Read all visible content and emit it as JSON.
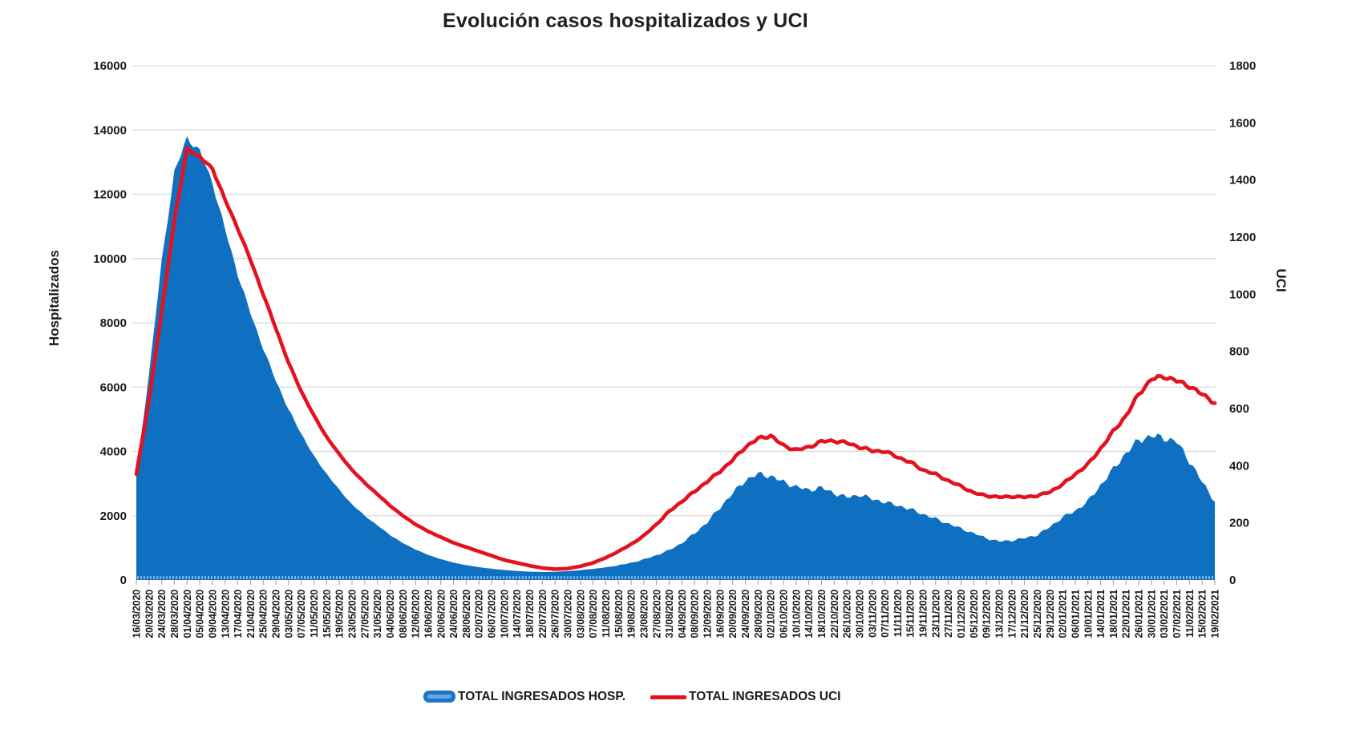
{
  "title": "Evolución casos hospitalizados y UCI",
  "legend": {
    "hosp_label": "TOTAL INGRESADOS HOSP.",
    "uci_label": "TOTAL INGRESADOS UCI"
  },
  "colors": {
    "hosp_fill": "#0f70c2",
    "hosp_baseline_texture": "#7fb2e5",
    "uci_line": "#e4121e",
    "gridline": "#d9d9d9",
    "tick": "#9b9b9b",
    "label_text": "#1a1a1a"
  },
  "chart_data": {
    "type": "area",
    "title": "Evolución casos hospitalizados y UCI",
    "left_axis": {
      "title": "Hospitalizados",
      "min": 0,
      "max": 16000,
      "step": 2000,
      "ticks": [
        "16000",
        "14000",
        "12000",
        "10000",
        "8000",
        "6000",
        "4000",
        "2000",
        "0"
      ]
    },
    "right_axis": {
      "title": "UCI",
      "min": 0,
      "max": 1800,
      "step": 200,
      "ticks": [
        "1800",
        "1600",
        "1400",
        "1200",
        "1000",
        "800",
        "600",
        "400",
        "200",
        "0"
      ]
    },
    "grid": true,
    "legend_position": "bottom",
    "categories": [
      "16/03/2020",
      "20/03/2020",
      "24/03/2020",
      "28/03/2020",
      "01/04/2020",
      "05/04/2020",
      "09/04/2020",
      "13/04/2020",
      "17/04/2020",
      "21/04/2020",
      "25/04/2020",
      "29/04/2020",
      "03/05/2020",
      "07/05/2020",
      "11/05/2020",
      "15/05/2020",
      "19/05/2020",
      "23/05/2020",
      "27/05/2020",
      "31/05/2020",
      "04/06/2020",
      "08/06/2020",
      "12/06/2020",
      "16/06/2020",
      "20/06/2020",
      "24/06/2020",
      "28/06/2020",
      "02/07/2020",
      "06/07/2020",
      "10/07/2020",
      "14/07/2020",
      "18/07/2020",
      "22/07/2020",
      "26/07/2020",
      "30/07/2020",
      "03/08/2020",
      "07/08/2020",
      "11/08/2020",
      "15/08/2020",
      "19/08/2020",
      "23/08/2020",
      "27/08/2020",
      "31/08/2020",
      "04/09/2020",
      "08/09/2020",
      "12/09/2020",
      "16/09/2020",
      "20/09/2020",
      "24/09/2020",
      "28/09/2020",
      "02/10/2020",
      "06/10/2020",
      "10/10/2020",
      "14/10/2020",
      "18/10/2020",
      "22/10/2020",
      "26/10/2020",
      "30/10/2020",
      "03/11/2020",
      "07/11/2020",
      "11/11/2020",
      "15/11/2020",
      "19/11/2020",
      "23/11/2020",
      "27/11/2020",
      "01/12/2020",
      "05/12/2020",
      "09/12/2020",
      "13/12/2020",
      "17/12/2020",
      "21/12/2020",
      "25/12/2020",
      "29/12/2020",
      "02/01/2021",
      "06/01/2021",
      "10/01/2021",
      "14/01/2021",
      "18/01/2021",
      "22/01/2021",
      "26/01/2021",
      "30/01/2021",
      "03/02/2021",
      "07/02/2021",
      "11/02/2021",
      "15/02/2021",
      "19/02/2021"
    ],
    "series": [
      {
        "name": "TOTAL INGRESADOS HOSP.",
        "type": "area",
        "axis": "left",
        "color": "#0f70c2",
        "values": [
          3300,
          6400,
          9900,
          12700,
          13740,
          13350,
          12350,
          10900,
          9500,
          8300,
          7200,
          6200,
          5300,
          4550,
          3850,
          3300,
          2800,
          2350,
          2000,
          1700,
          1400,
          1150,
          950,
          780,
          650,
          540,
          460,
          400,
          350,
          310,
          280,
          260,
          250,
          255,
          275,
          305,
          345,
          395,
          455,
          535,
          640,
          770,
          930,
          1150,
          1450,
          1800,
          2250,
          2700,
          3100,
          3300,
          3230,
          3050,
          2900,
          2800,
          2870,
          2700,
          2570,
          2650,
          2520,
          2420,
          2320,
          2200,
          2050,
          1900,
          1750,
          1600,
          1450,
          1300,
          1200,
          1230,
          1300,
          1400,
          1650,
          1950,
          2150,
          2450,
          2950,
          3450,
          3950,
          4350,
          4480,
          4420,
          4300,
          3700,
          3050,
          2450
        ]
      },
      {
        "name": "TOTAL INGRESADOS UCI",
        "type": "line",
        "axis": "right",
        "color": "#e4121e",
        "values": [
          370,
          630,
          940,
          1260,
          1510,
          1480,
          1440,
          1330,
          1230,
          1120,
          1000,
          880,
          760,
          660,
          575,
          500,
          440,
          385,
          340,
          300,
          260,
          225,
          195,
          170,
          150,
          130,
          115,
          100,
          85,
          70,
          60,
          50,
          42,
          38,
          40,
          48,
          60,
          78,
          100,
          125,
          155,
          195,
          240,
          275,
          310,
          345,
          380,
          420,
          465,
          495,
          505,
          470,
          455,
          465,
          485,
          487,
          480,
          465,
          452,
          450,
          430,
          412,
          385,
          370,
          347,
          328,
          305,
          295,
          290,
          292,
          290,
          295,
          308,
          335,
          370,
          405,
          460,
          520,
          575,
          650,
          703,
          712,
          697,
          678,
          650,
          620
        ]
      }
    ]
  }
}
